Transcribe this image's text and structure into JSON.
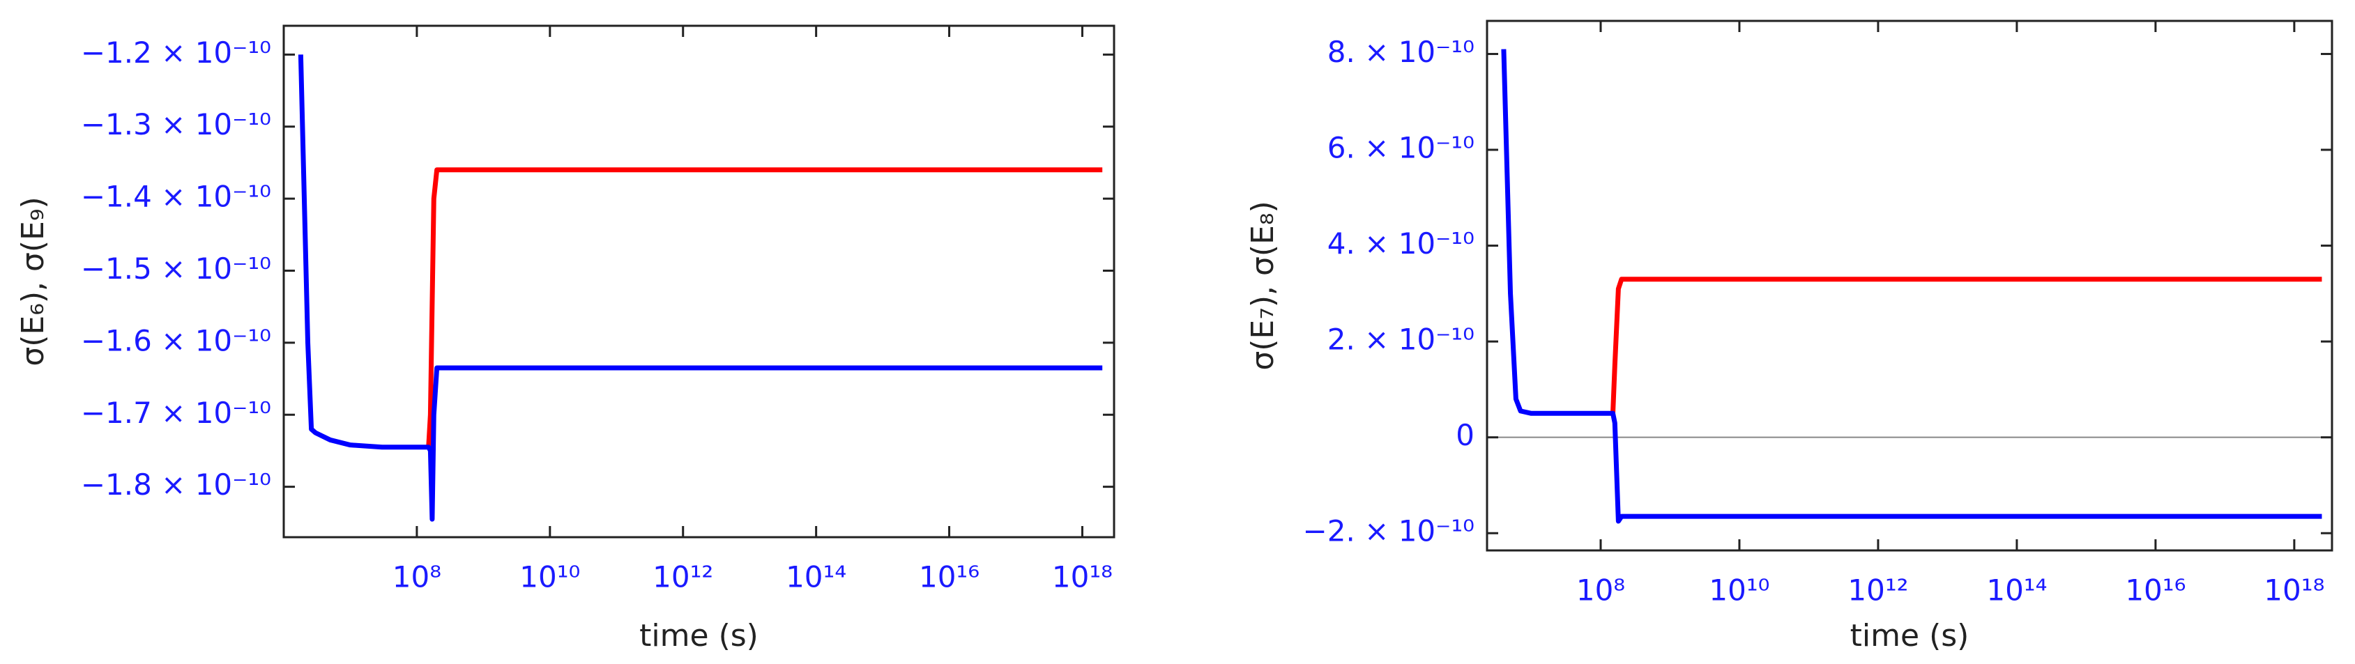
{
  "chart_data": [
    {
      "type": "line",
      "xscale": "log",
      "ylabel": "σ(E₆),  σ(E₉)",
      "xlabel": "time (s)",
      "xlim": [
        1000000.0,
        3e+18
      ],
      "xticks": [
        {
          "value": 100000000.0,
          "label": "10⁸"
        },
        {
          "value": 10000000000.0,
          "label": "10¹⁰"
        },
        {
          "value": 1000000000000.0,
          "label": "10¹²"
        },
        {
          "value": 100000000000000.0,
          "label": "10¹⁴"
        },
        {
          "value": 1e+16,
          "label": "10¹⁶"
        },
        {
          "value": 1e+18,
          "label": "10¹⁸"
        }
      ],
      "ylim": [
        -1.87e-10,
        -1.16e-10
      ],
      "yticks": [
        {
          "value": -1.2e-10,
          "label": "−1.2 × 10⁻¹⁰"
        },
        {
          "value": -1.3e-10,
          "label": "−1.3 × 10⁻¹⁰"
        },
        {
          "value": -1.4e-10,
          "label": "−1.4 × 10⁻¹⁰"
        },
        {
          "value": -1.5e-10,
          "label": "−1.5 × 10⁻¹⁰"
        },
        {
          "value": -1.6e-10,
          "label": "−1.6 × 10⁻¹⁰"
        },
        {
          "value": -1.7e-10,
          "label": "−1.7 × 10⁻¹⁰"
        },
        {
          "value": -1.8e-10,
          "label": "−1.8 × 10⁻¹⁰"
        }
      ],
      "zero_line": false,
      "series": [
        {
          "color": "#ff0000",
          "x": [
            150000000.0,
            160000000.0,
            180000000.0,
            200000000.0,
            2e+18
          ],
          "values": [
            -1.745e-10,
            -1.7e-10,
            -1.4e-10,
            -1.36e-10,
            -1.36e-10
          ]
        },
        {
          "color": "#0000ff",
          "x": [
            1800000.0,
            2300000.0,
            2600000.0,
            3000000.0,
            5000000.0,
            10000000.0,
            30000000.0,
            150000000.0,
            160000000.0,
            170000000.0,
            180000000.0,
            200000000.0,
            2e+18
          ],
          "values": [
            -1.2e-10,
            -1.6e-10,
            -1.72e-10,
            -1.725e-10,
            -1.735e-10,
            -1.742e-10,
            -1.745e-10,
            -1.745e-10,
            -1.75e-10,
            -1.845e-10,
            -1.7e-10,
            -1.635e-10,
            -1.635e-10
          ]
        }
      ]
    },
    {
      "type": "line",
      "xscale": "log",
      "ylabel": "σ(E₇),  σ(E₈)",
      "xlabel": "time (s)",
      "xlim": [
        2300000.0,
        3.5e+18
      ],
      "xticks": [
        {
          "value": 100000000.0,
          "label": "10⁸"
        },
        {
          "value": 10000000000.0,
          "label": "10¹⁰"
        },
        {
          "value": 1000000000000.0,
          "label": "10¹²"
        },
        {
          "value": 100000000000000.0,
          "label": "10¹⁴"
        },
        {
          "value": 1e+16,
          "label": "10¹⁶"
        },
        {
          "value": 1e+18,
          "label": "10¹⁸"
        }
      ],
      "ylim": [
        -2.36e-10,
        8.69e-10
      ],
      "yticks": [
        {
          "value": -2e-10,
          "label": "−2. × 10⁻¹⁰"
        },
        0,
        {
          "value": 2e-10,
          "label": "2. × 10⁻¹⁰"
        },
        {
          "value": 4e-10,
          "label": "4. × 10⁻¹⁰"
        },
        {
          "value": 6e-10,
          "label": "6. × 10⁻¹⁰"
        },
        {
          "value": 8e-10,
          "label": "8. × 10⁻¹⁰"
        }
      ],
      "zero_line": true,
      "series": [
        {
          "color": "#ff0000",
          "x": [
            150000000.0,
            160000000.0,
            180000000.0,
            200000000.0,
            2.5e+18
          ],
          "values": [
            5e-11,
            1.5e-10,
            3.1e-10,
            3.3e-10,
            3.3e-10
          ]
        },
        {
          "color": "#0000ff",
          "x": [
            4000000.0,
            5000000.0,
            6000000.0,
            7000000.0,
            10000000.0,
            150000000.0,
            160000000.0,
            180000000.0,
            200000000.0,
            2.5e+18
          ],
          "values": [
            8.1e-10,
            3e-10,
            8e-11,
            5.5e-11,
            5e-11,
            5e-11,
            3e-11,
            -1.75e-10,
            -1.65e-10,
            -1.65e-10
          ]
        }
      ]
    }
  ]
}
